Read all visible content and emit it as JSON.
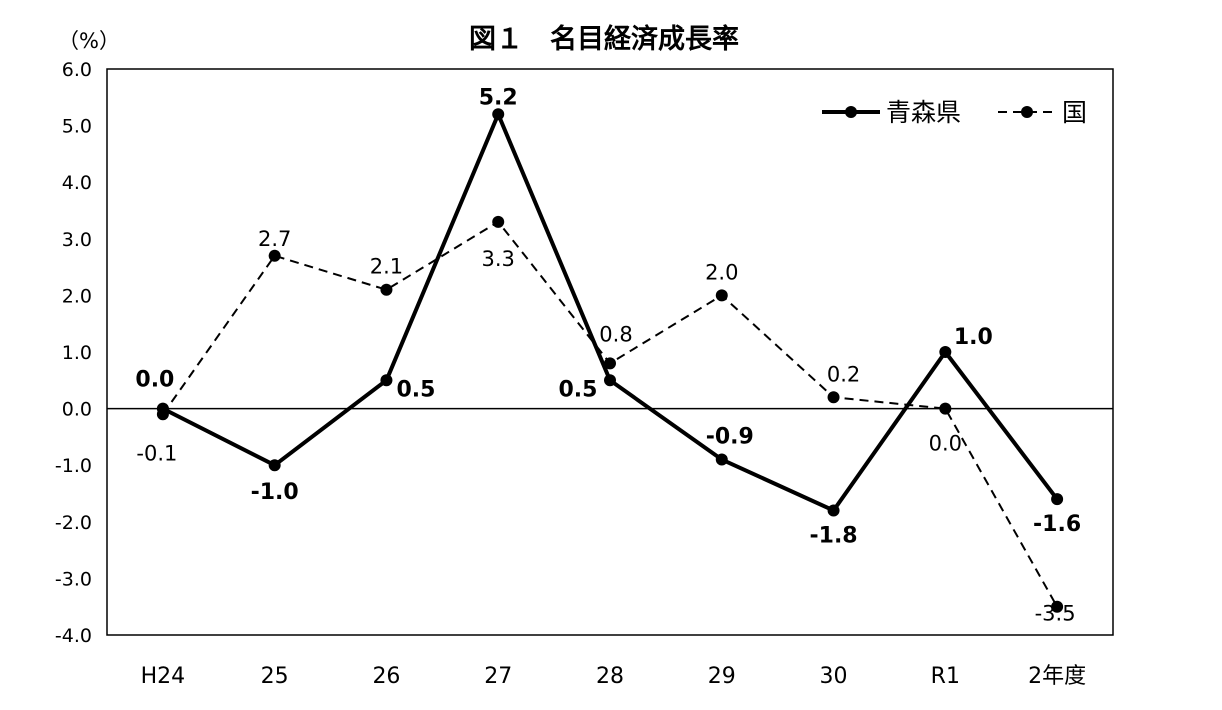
{
  "chart_data": {
    "type": "line",
    "title": "図１　名目経済成長率",
    "unit_label": "（%）",
    "categories": [
      "H24",
      "25",
      "26",
      "27",
      "28",
      "29",
      "30",
      "R1",
      "2年度"
    ],
    "ylim": [
      -4.0,
      6.0
    ],
    "yticks": [
      "6.0",
      "5.0",
      "4.0",
      "3.0",
      "2.0",
      "1.0",
      "0.0",
      "-1.0",
      "-2.0",
      "-3.0",
      "-4.0"
    ],
    "grid": false,
    "legend_position": "top-right",
    "series": [
      {
        "name": "青森県",
        "line_style": "solid",
        "values": [
          0.0,
          -1.0,
          0.5,
          5.2,
          0.5,
          -0.9,
          -1.8,
          1.0,
          -1.6
        ],
        "labels": [
          "0.0",
          "-1.0",
          "0.5",
          "5.2",
          "0.5",
          "-0.9",
          "-1.8",
          "1.0",
          "-1.6"
        ]
      },
      {
        "name": "国",
        "line_style": "dashed",
        "values": [
          -0.1,
          2.7,
          2.1,
          3.3,
          0.8,
          2.0,
          0.2,
          0.0,
          -3.5
        ],
        "labels": [
          "-0.1",
          "2.7",
          "2.1",
          "3.3",
          "0.8",
          "2.0",
          "0.2",
          "0.0",
          "-3.5"
        ]
      }
    ]
  }
}
